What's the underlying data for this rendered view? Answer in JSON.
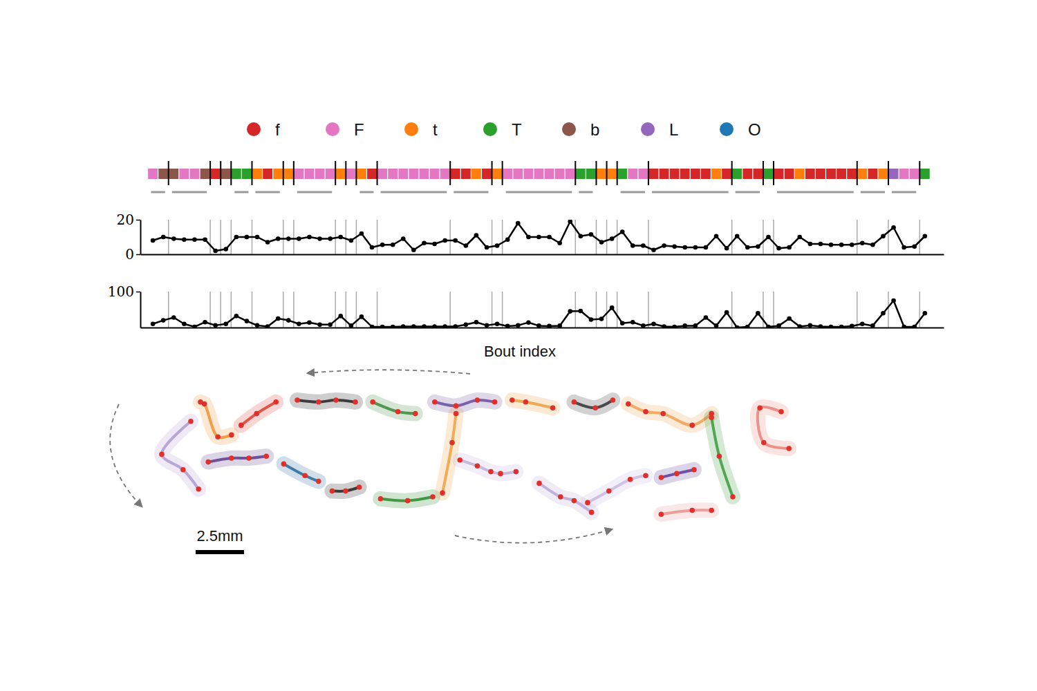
{
  "chart_data": [
    {
      "type": "ethogram",
      "series": [
        {
          "name": "f",
          "color": "#d62728"
        },
        {
          "name": "F",
          "color": "#e377c2"
        },
        {
          "name": "t",
          "color": "#ff7f0e"
        },
        {
          "name": "T",
          "color": "#2ca02c"
        },
        {
          "name": "b",
          "color": "#8c564b"
        },
        {
          "name": "L",
          "color": "#9467bd"
        },
        {
          "name": "O",
          "color": "#1f77b4"
        }
      ],
      "values": [
        "F",
        "b",
        "b",
        "F",
        "F",
        "b",
        "f",
        "b",
        "T",
        "T",
        "t",
        "f",
        "t",
        "t",
        "F",
        "F",
        "F",
        "F",
        "t",
        "F",
        "t",
        "f",
        "F",
        "F",
        "F",
        "F",
        "F",
        "F",
        "F",
        "f",
        "f",
        "t",
        "f",
        "t",
        "F",
        "F",
        "F",
        "F",
        "F",
        "F",
        "F",
        "T",
        "T",
        "t",
        "t",
        "T",
        "F",
        "F",
        "f",
        "f",
        "f",
        "f",
        "f",
        "f",
        "t",
        "f",
        "T",
        "f",
        "f",
        "T",
        "f",
        "f",
        "t",
        "f",
        "f",
        "f",
        "f",
        "f",
        "t",
        "f",
        "t",
        "L",
        "F",
        "F",
        "T"
      ],
      "boundaries": [
        2,
        6,
        7,
        8,
        10,
        13,
        14,
        18,
        19,
        20,
        22,
        29,
        33,
        34,
        41,
        43,
        44,
        45,
        48,
        56,
        59,
        60,
        68,
        71,
        74
      ],
      "bouts": [
        [
          0,
          1
        ],
        [
          2,
          5
        ],
        [
          8,
          9
        ],
        [
          10,
          12
        ],
        [
          14,
          17
        ],
        [
          20,
          21
        ],
        [
          22,
          28
        ],
        [
          29,
          32
        ],
        [
          34,
          40
        ],
        [
          41,
          42
        ],
        [
          45,
          47
        ],
        [
          48,
          55
        ],
        [
          56,
          58
        ],
        [
          60,
          67
        ],
        [
          68,
          70
        ],
        [
          71,
          73
        ]
      ]
    },
    {
      "type": "line",
      "x": [
        0,
        1,
        2,
        3,
        4,
        5,
        6,
        7,
        8,
        9,
        10,
        11,
        12,
        13,
        14,
        15,
        16,
        17,
        18,
        19,
        20,
        21,
        22,
        23,
        24,
        25,
        26,
        27,
        28,
        29,
        30,
        31,
        32,
        33,
        34,
        35,
        36,
        37,
        38,
        39,
        40,
        41,
        42,
        43,
        44,
        45,
        46,
        47,
        48,
        49,
        50,
        51,
        52,
        53,
        54,
        55,
        56,
        57,
        58,
        59,
        60,
        61,
        62,
        63,
        64,
        65,
        66,
        67,
        68,
        69,
        70,
        71,
        72,
        73,
        74
      ],
      "values": [
        8,
        10,
        9,
        8.5,
        8.5,
        8.5,
        2,
        3,
        10,
        10,
        10,
        7,
        9,
        9,
        9,
        10,
        9,
        9,
        10,
        8,
        12,
        4,
        5.5,
        5.5,
        9,
        2.5,
        6.5,
        6,
        8,
        8,
        5,
        11,
        4,
        5,
        8.5,
        18,
        10,
        10,
        10,
        6.5,
        19,
        10.5,
        11.5,
        7,
        9,
        13,
        5,
        5,
        2.5,
        5,
        4.5,
        4,
        4,
        4,
        10.5,
        3.5,
        10.5,
        4,
        4.5,
        10,
        3.5,
        4,
        10,
        6,
        6,
        5.5,
        5.5,
        5.5,
        6.5,
        5.5,
        10.5,
        15.5,
        4,
        4.5,
        10.5
      ],
      "color": "#000000",
      "marker": "circle",
      "xlim": [
        -1.2,
        75.8
      ],
      "ylim": [
        0,
        20
      ],
      "yticks": [
        0,
        20
      ],
      "tick_labels": "y"
    },
    {
      "type": "line",
      "x": [
        0,
        1,
        2,
        3,
        4,
        5,
        6,
        7,
        8,
        9,
        10,
        11,
        12,
        13,
        14,
        15,
        16,
        17,
        18,
        19,
        20,
        21,
        22,
        23,
        24,
        25,
        26,
        27,
        28,
        29,
        30,
        31,
        32,
        33,
        34,
        35,
        36,
        37,
        38,
        39,
        40,
        41,
        42,
        43,
        44,
        45,
        46,
        47,
        48,
        49,
        50,
        51,
        52,
        53,
        54,
        55,
        56,
        57,
        58,
        59,
        60,
        61,
        62,
        63,
        64,
        65,
        66,
        67,
        68,
        69,
        70,
        71,
        72,
        73,
        74
      ],
      "values": [
        10,
        20,
        28,
        10,
        2,
        15,
        6,
        10,
        32,
        18,
        6,
        3,
        25,
        20,
        10,
        14,
        8,
        8,
        32,
        5,
        30,
        2,
        2,
        2,
        3,
        3,
        3,
        3,
        3,
        3,
        8,
        15,
        6,
        10,
        4,
        6,
        14,
        5,
        4,
        5,
        45,
        46,
        22,
        24,
        55,
        12,
        15,
        5,
        10,
        3,
        2,
        5,
        5,
        28,
        5,
        42,
        0,
        2,
        40,
        2,
        5,
        25,
        3,
        6,
        3,
        2,
        2,
        4,
        10,
        5,
        40,
        75,
        2,
        2,
        40
      ],
      "color": "#000000",
      "marker": "circle",
      "xlabel": "Bout index",
      "xlim": [
        -1.2,
        75.8
      ],
      "ylim": [
        0,
        100
      ],
      "yticks": [
        100
      ],
      "tick_labels": "y"
    },
    {
      "type": "trajectory",
      "segments": [
        {
          "color": "#e8827a",
          "x": [
            32.9,
            31.6,
            31.4,
            32.5
          ],
          "y": [
            4.5,
            4.8,
            6.6,
            6.4
          ]
        },
        {
          "color": "#f0a050",
          "x": [
            28.9,
            27.9,
            26.4,
            25.5,
            24.6
          ],
          "y": [
            6.3,
            5.7,
            6.3,
            6.4,
            6.8
          ]
        },
        {
          "color": "#333333",
          "x": [
            23.8,
            22.9,
            21.8
          ],
          "y": [
            7.0,
            6.6,
            6.9
          ]
        },
        {
          "color": "#e8a040",
          "x": [
            20.7,
            19.3,
            18.6
          ],
          "y": [
            6.6,
            6.9,
            7.0
          ]
        },
        {
          "color": "#6a4c9c",
          "x": [
            17.7,
            16.8,
            15.7,
            14.6
          ],
          "y": [
            6.9,
            7.0,
            6.7,
            6.9
          ]
        },
        {
          "color": "#3a8a3a",
          "x": [
            13.6,
            12.7,
            11.4
          ],
          "y": [
            6.3,
            6.4,
            6.9
          ]
        },
        {
          "color": "#222222",
          "x": [
            10.5,
            9.5,
            8.6,
            7.5
          ],
          "y": [
            6.9,
            7.0,
            6.9,
            7.0
          ]
        },
        {
          "color": "#d84030",
          "x": [
            6.4,
            5.4,
            4.6
          ],
          "y": [
            6.9,
            6.3,
            5.7
          ]
        },
        {
          "color": "#f09030",
          "x": [
            4.1,
            3.4,
            2.7,
            2.5
          ],
          "y": [
            5.2,
            5.1,
            6.8,
            6.9
          ]
        },
        {
          "color": "#b09ad0",
          "x": [
            2.0,
            0.5,
            1.6,
            2.4
          ],
          "y": [
            5.9,
            4.2,
            3.4,
            2.4
          ]
        },
        {
          "color": "#5a3a8a",
          "x": [
            2.9,
            4.1,
            5.0,
            5.9
          ],
          "y": [
            3.8,
            4.0,
            4.0,
            4.1
          ]
        },
        {
          "color": "#2a6a9a",
          "x": [
            6.8,
            7.9,
            8.6
          ],
          "y": [
            3.7,
            3.1,
            2.8
          ]
        },
        {
          "color": "#222222",
          "x": [
            9.3,
            10.0,
            10.7
          ],
          "y": [
            2.3,
            2.3,
            2.5
          ]
        },
        {
          "color": "#2a8a2a",
          "x": [
            11.8,
            13.2,
            14.5
          ],
          "y": [
            1.9,
            1.8,
            2.0
          ]
        },
        {
          "color": "#f0a040",
          "x": [
            15.0,
            15.5,
            15.7
          ],
          "y": [
            2.2,
            4.8,
            6.3
          ]
        },
        {
          "color": "#c0b0dc",
          "x": [
            15.9,
            16.8,
            17.5,
            18.0,
            18.8
          ],
          "y": [
            3.9,
            3.6,
            3.3,
            3.2,
            3.3
          ]
        },
        {
          "color": "#b8a8d8",
          "x": [
            20.0,
            21.1,
            21.8,
            22.7
          ],
          "y": [
            2.7,
            2.0,
            1.8,
            1.2
          ]
        },
        {
          "color": "#c8b8e0",
          "x": [
            22.5,
            23.6,
            24.7,
            25.5
          ],
          "y": [
            1.7,
            2.3,
            2.9,
            3.1
          ]
        },
        {
          "color": "#5a3a9a",
          "x": [
            26.3,
            27.1,
            28.0
          ],
          "y": [
            3.0,
            3.2,
            3.4
          ]
        },
        {
          "color": "#3a9a3a",
          "x": [
            28.9,
            29.3,
            30.0
          ],
          "y": [
            6.1,
            4.1,
            2.0
          ]
        },
        {
          "color": "#e89090",
          "x": [
            26.3,
            27.9,
            28.9
          ],
          "y": [
            1.1,
            1.3,
            1.3
          ]
        }
      ],
      "scale_bar": {
        "value": 2.5,
        "label": "2.5mm"
      },
      "tick_labels": false
    }
  ]
}
